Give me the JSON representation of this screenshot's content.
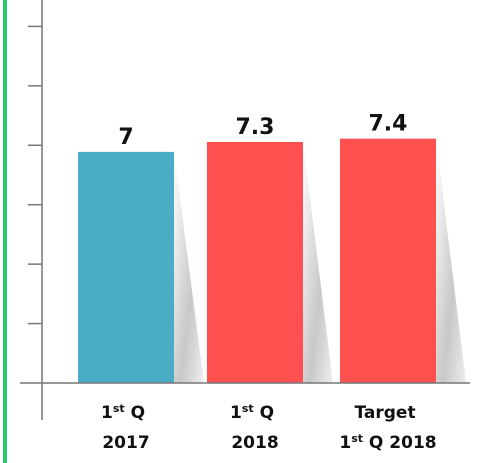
{
  "chart_data": {
    "type": "bar",
    "categories": [
      "1st Q 2017",
      "1st Q 2018",
      "Target 1st Q 2018"
    ],
    "values": [
      7,
      7.3,
      7.4
    ],
    "colors": [
      "#4bacc6",
      "#ff5050",
      "#ff5050"
    ],
    "ylim": [
      0,
      11.6
    ],
    "yticks": [
      1.8,
      3.6,
      5.4,
      7.2,
      9,
      10.8
    ]
  }
}
